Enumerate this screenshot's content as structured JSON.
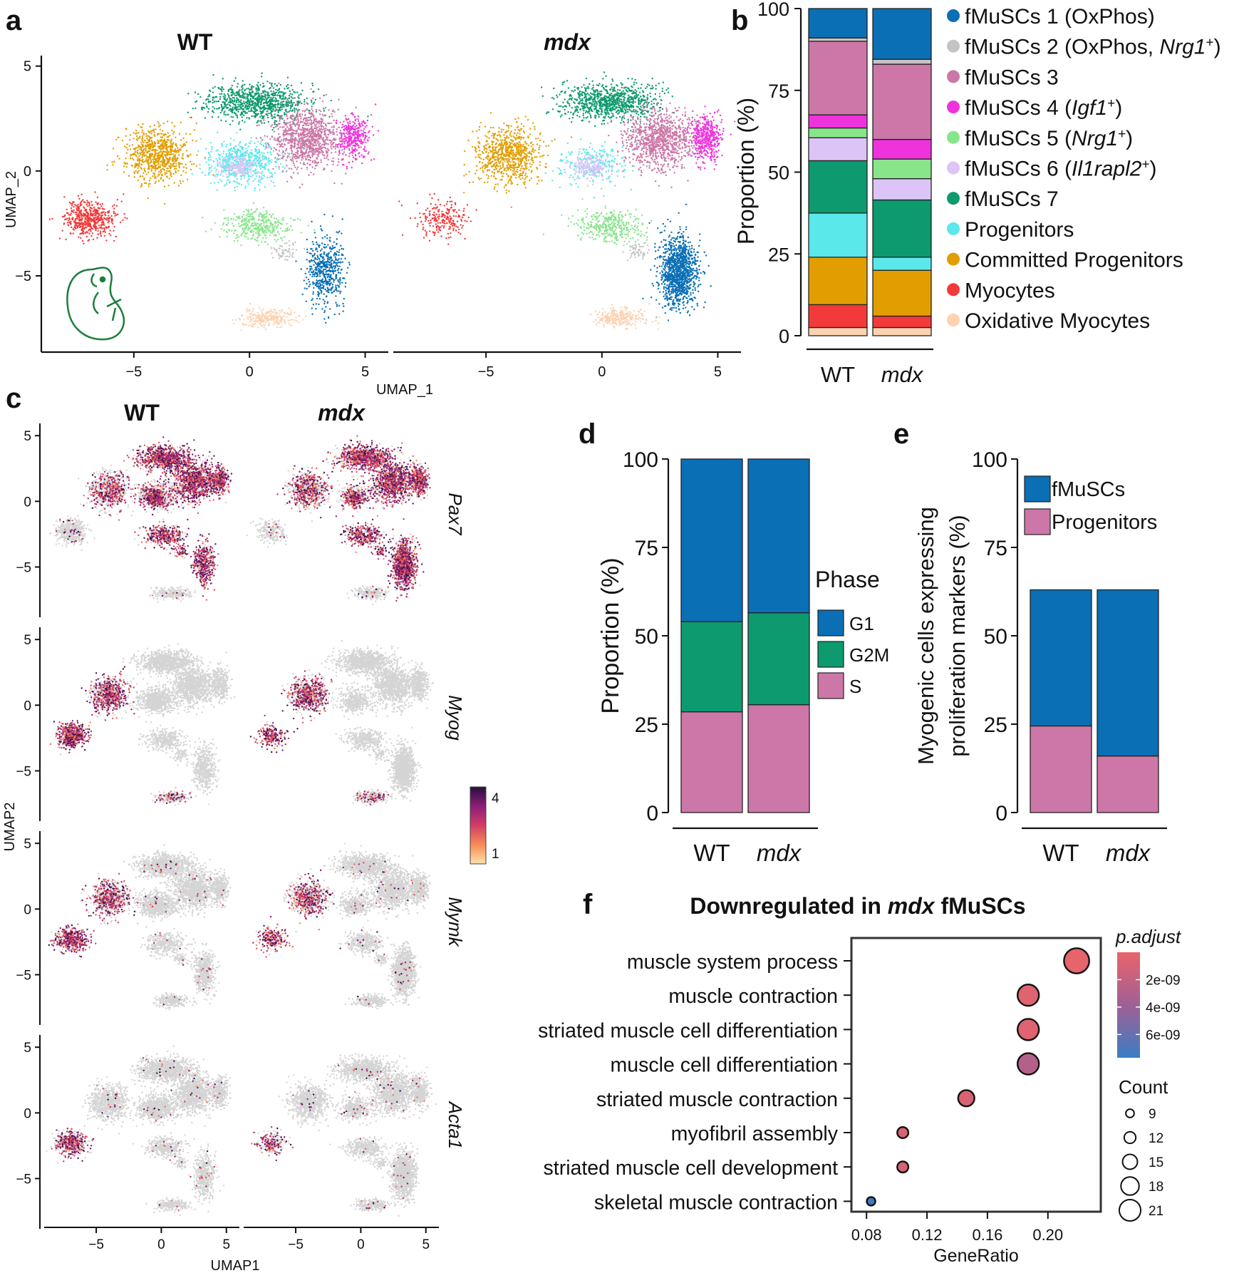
{
  "colors": {
    "fm1": "#0a6fb5",
    "fm2": "#c4c4c4",
    "fm3": "#cc77a8",
    "fm4": "#ee33dd",
    "fm5": "#88e58a",
    "fm6": "#dcc4f7",
    "fm7": "#0d9a6e",
    "prog": "#5ae8ea",
    "comm": "#e29e00",
    "myo": "#f23a3a",
    "oxmyo": "#fdd2b0",
    "grey": "#d4d4d4",
    "g1": "#0a6fb5",
    "g2m": "#0d9a6e",
    "s": "#cc77a8",
    "pos_low": "#e8646a",
    "pos_high": "#3a7dc4"
  },
  "panels": {
    "a": "a",
    "b": "b",
    "c": "c",
    "d": "d",
    "e": "e",
    "f": "f"
  },
  "chart_data": [
    {
      "id": "a",
      "type": "scatter",
      "facets": [
        "WT",
        "mdx"
      ],
      "xlabel": "UMAP_1",
      "ylabel": "UMAP_2",
      "xlim": [
        -9,
        6
      ],
      "ylim": [
        -8.5,
        5.5
      ],
      "xticks": [
        -5,
        0,
        5
      ],
      "yticks": [
        5,
        0,
        -5
      ],
      "xtick_labels": [
        "−5",
        "0",
        "5"
      ],
      "ytick_labels": [
        "5",
        "0",
        "−5"
      ]
    },
    {
      "id": "b",
      "type": "bar",
      "stacked": true,
      "categories": [
        "WT",
        "mdx"
      ],
      "ylabel": "Proportion (%)",
      "ylim": [
        0,
        100
      ],
      "yticks": [
        "0",
        "25",
        "50",
        "75",
        "100"
      ],
      "series": [
        {
          "key": "oxmyo",
          "values": [
            2.5,
            2.5
          ]
        },
        {
          "key": "myo",
          "values": [
            7,
            3.5
          ]
        },
        {
          "key": "comm",
          "values": [
            14.5,
            14
          ]
        },
        {
          "key": "prog",
          "values": [
            13.5,
            4
          ]
        },
        {
          "key": "fm7",
          "values": [
            16,
            17.5
          ]
        },
        {
          "key": "fm6",
          "values": [
            7,
            6.5
          ]
        },
        {
          "key": "fm5",
          "values": [
            3,
            6
          ]
        },
        {
          "key": "fm4",
          "values": [
            4,
            6
          ]
        },
        {
          "key": "fm3",
          "values": [
            22.5,
            23
          ]
        },
        {
          "key": "fm2",
          "values": [
            1,
            1.5
          ]
        },
        {
          "key": "fm1",
          "values": [
            9,
            15.5
          ]
        }
      ],
      "legend": [
        {
          "key": "fm1",
          "label": "fMuSCs 1 (OxPhos)"
        },
        {
          "key": "fm2",
          "label": "fMuSCs 2 (OxPhos, ",
          "ital": "Nrg1",
          "sup": "+",
          "tail": ")"
        },
        {
          "key": "fm3",
          "label": "fMuSCs 3"
        },
        {
          "key": "fm4",
          "label": "fMuSCs 4 (",
          "ital": "Igf1",
          "sup": "+",
          "tail": ")"
        },
        {
          "key": "fm5",
          "label": "fMuSCs 5 (",
          "ital": "Nrg1",
          "sup": "+",
          "tail": ")"
        },
        {
          "key": "fm6",
          "label": "fMuSCs 6 (",
          "ital": "Il1rapl2",
          "sup": "+",
          "tail": ")"
        },
        {
          "key": "fm7",
          "label": "fMuSCs 7"
        },
        {
          "key": "prog",
          "label": "Progenitors"
        },
        {
          "key": "comm",
          "label": "Committed Progenitors"
        },
        {
          "key": "myo",
          "label": "Myocytes"
        },
        {
          "key": "oxmyo",
          "label": "Oxidative Myocytes"
        }
      ]
    },
    {
      "id": "c",
      "type": "scatter",
      "facets": [
        "WT",
        "mdx"
      ],
      "genes": [
        "Pax7",
        "Myog",
        "Mymk",
        "Acta1"
      ],
      "xlabel": "UMAP1",
      "ylabel": "UMAP2",
      "xticks": [
        -5,
        0,
        5
      ],
      "yticks": [
        5,
        0,
        -5
      ],
      "xtick_labels": [
        "−5",
        "0",
        "5"
      ],
      "ytick_labels": [
        "5",
        "0",
        "−5"
      ],
      "colorbar": {
        "min_label": "1",
        "max_label": "4",
        "range": [
          1,
          4
        ]
      }
    },
    {
      "id": "d",
      "type": "bar",
      "stacked": true,
      "categories": [
        "WT",
        "mdx"
      ],
      "ylabel": "Proportion (%)",
      "ylim": [
        0,
        100
      ],
      "yticks": [
        "0",
        "25",
        "50",
        "75",
        "100"
      ],
      "legend_title": "Phase",
      "series": [
        {
          "name": "S",
          "key": "s",
          "values": [
            28.5,
            30.5
          ]
        },
        {
          "name": "G2M",
          "key": "g2m",
          "values": [
            25.5,
            26
          ]
        },
        {
          "name": "G1",
          "key": "g1",
          "values": [
            46,
            43.5
          ]
        }
      ],
      "legend": [
        "G1",
        "G2M",
        "S"
      ]
    },
    {
      "id": "e",
      "type": "bar",
      "stacked": true,
      "categories": [
        "WT",
        "mdx"
      ],
      "ylabel_lines": [
        "Myogenic cells expressing",
        "proliferation markers (%)"
      ],
      "ylim": [
        0,
        100
      ],
      "yticks": [
        "0",
        "25",
        "50",
        "75",
        "100"
      ],
      "series": [
        {
          "name": "Progenitors",
          "key": "s",
          "values": [
            24.5,
            16
          ]
        },
        {
          "name": "fMuSCs",
          "key": "g1",
          "values": [
            38.5,
            47
          ]
        }
      ],
      "legend": [
        "fMuSCs",
        "Progenitors"
      ]
    },
    {
      "id": "f",
      "type": "scatter",
      "title_pre": "Downregulated in ",
      "title_ital": "mdx",
      "title_post": " fMuSCs",
      "xlabel": "GeneRatio",
      "xlim": [
        0.07,
        0.235
      ],
      "xticks": [
        0.08,
        0.12,
        0.16,
        0.2
      ],
      "xtick_labels": [
        "0.08",
        "0.12",
        "0.16",
        "0.20"
      ],
      "terms": [
        {
          "label": "muscle system process",
          "ratio": 0.219,
          "count": 21,
          "padj": 1e-10
        },
        {
          "label": "muscle contraction",
          "ratio": 0.187,
          "count": 18,
          "padj": 5e-10
        },
        {
          "label": "striated muscle cell differentiation",
          "ratio": 0.187,
          "count": 18,
          "padj": 5e-10
        },
        {
          "label": "muscle cell differentiation",
          "ratio": 0.187,
          "count": 18,
          "padj": 2.8e-09
        },
        {
          "label": "striated muscle contraction",
          "ratio": 0.146,
          "count": 14,
          "padj": 9e-10
        },
        {
          "label": "myofibril assembly",
          "ratio": 0.104,
          "count": 10,
          "padj": 9e-10
        },
        {
          "label": "striated muscle cell development",
          "ratio": 0.104,
          "count": 10,
          "padj": 9e-10
        },
        {
          "label": "skeletal muscle contraction",
          "ratio": 0.083,
          "count": 8,
          "padj": 7.5e-09
        }
      ],
      "padj_legend": {
        "title": "p.adjust",
        "ticks": [
          "2e-09",
          "4e-09",
          "6e-09"
        ],
        "tick_values": [
          2e-09,
          4e-09,
          6e-09
        ],
        "range": [
          0,
          7.7e-09
        ]
      },
      "count_legend": {
        "title": "Count",
        "values": [
          9,
          12,
          15,
          18,
          21
        ],
        "labels": [
          "9",
          "12",
          "15",
          "18",
          "21"
        ]
      }
    }
  ]
}
